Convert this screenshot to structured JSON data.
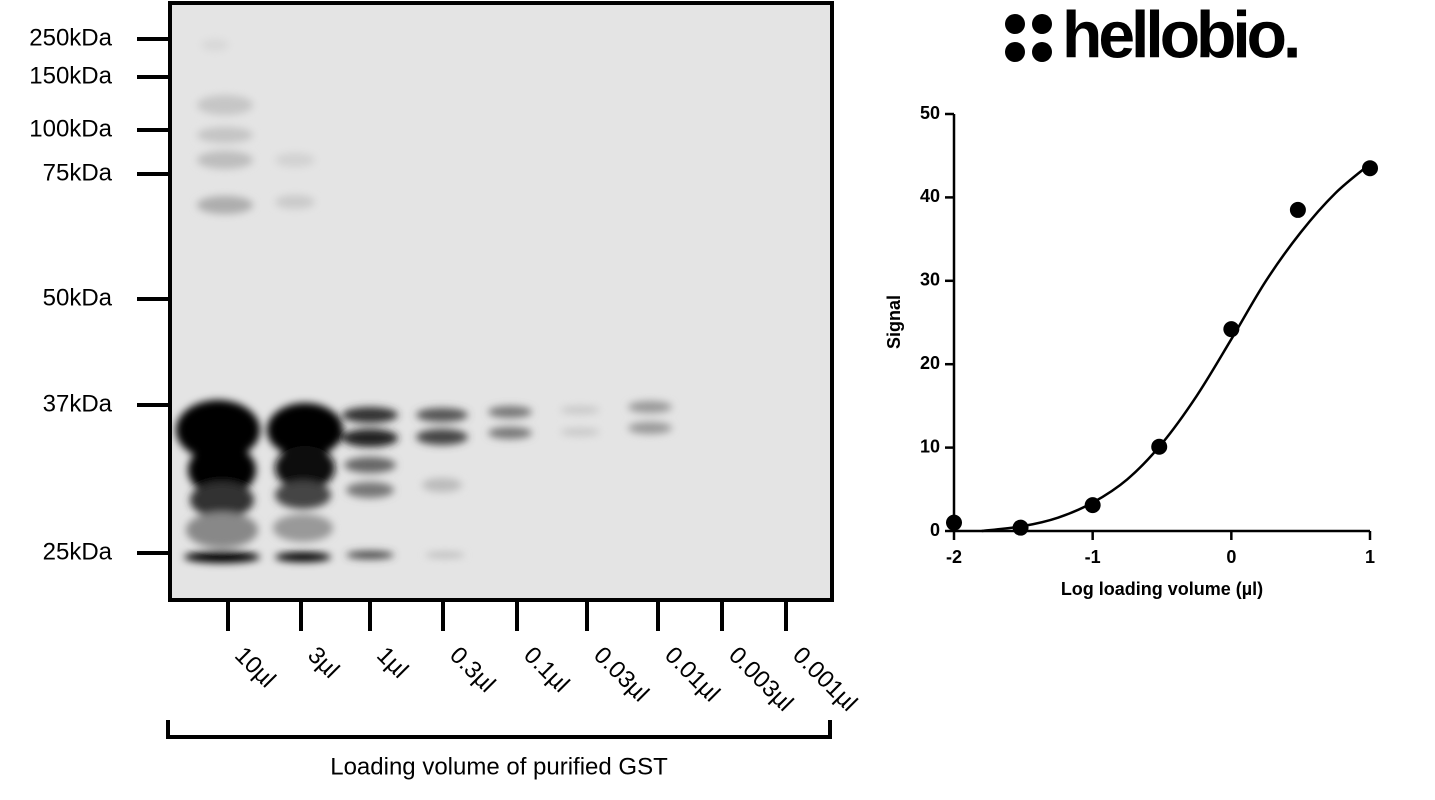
{
  "logo": "hellobio.",
  "blot": {
    "markers": [
      "250kDa",
      "150kDa",
      "100kDa",
      "75kDa",
      "50kDa",
      "37kDa",
      "25kDa"
    ],
    "lanes": [
      "10µl",
      "3µl",
      "1µl",
      "0.3µl",
      "0.1µl",
      "0.03µl",
      "0.01µl",
      "0.003µl",
      "0.001µl"
    ],
    "xlabel": "Loading volume of purified GST"
  },
  "chart_data": {
    "type": "scatter",
    "xlabel": "Log loading volume (µl)",
    "ylabel": "Signal",
    "x": [
      -2,
      -1.52,
      -1,
      -0.52,
      0,
      0.48,
      1
    ],
    "values": [
      1,
      0.4,
      3.1,
      10.1,
      24.2,
      38.5,
      43.5
    ],
    "color": "#000000",
    "curve": {
      "x": [
        -1.8,
        -1.5,
        -1.25,
        -1,
        -0.75,
        -0.5,
        -0.25,
        0,
        0.25,
        0.5,
        0.75,
        1
      ],
      "values": [
        0,
        0.6,
        1.6,
        3.4,
        6.2,
        10.5,
        16.2,
        23,
        30,
        35.8,
        40.5,
        44
      ]
    },
    "xlim": [
      -2,
      1
    ],
    "ylim": [
      0,
      50
    ],
    "xticks": [
      -2,
      -1,
      0,
      1
    ],
    "yticks": [
      0,
      10,
      20,
      30,
      40,
      50
    ]
  }
}
